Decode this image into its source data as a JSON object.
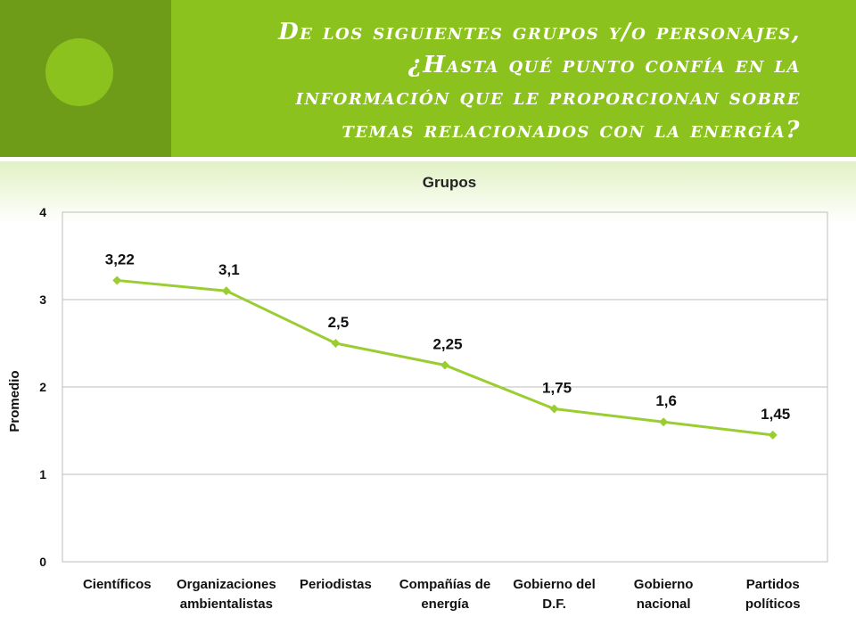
{
  "slide": {
    "title_lines": [
      "De los siguientes grupos y/o personajes,",
      "¿Hasta qué punto confía en la",
      "información que le proporcionan sobre",
      "temas relacionados con la energía?"
    ],
    "accent_color": "#8cc21e",
    "accent_dark": "#6e9c18"
  },
  "chart_data": {
    "type": "line",
    "title": "Grupos",
    "xlabel": "",
    "ylabel": "Promedio",
    "ylim": [
      0,
      4
    ],
    "yticks": [
      0,
      1,
      2,
      3,
      4
    ],
    "grid": true,
    "legend": "none",
    "categories": [
      [
        "Científicos"
      ],
      [
        "Organizaciones",
        "ambientalistas"
      ],
      [
        "Periodistas"
      ],
      [
        "Compañías de",
        "energía"
      ],
      [
        "Gobierno del",
        "D.F."
      ],
      [
        "Gobierno",
        "nacional"
      ],
      [
        "Partidos",
        "políticos"
      ]
    ],
    "values": [
      3.22,
      3.1,
      2.5,
      2.25,
      1.75,
      1.6,
      1.45
    ],
    "data_labels": [
      "3,22",
      "3,1",
      "2,5",
      "2,25",
      "1,75",
      "1,6",
      "1,45"
    ],
    "line_color": "#9acd32"
  }
}
